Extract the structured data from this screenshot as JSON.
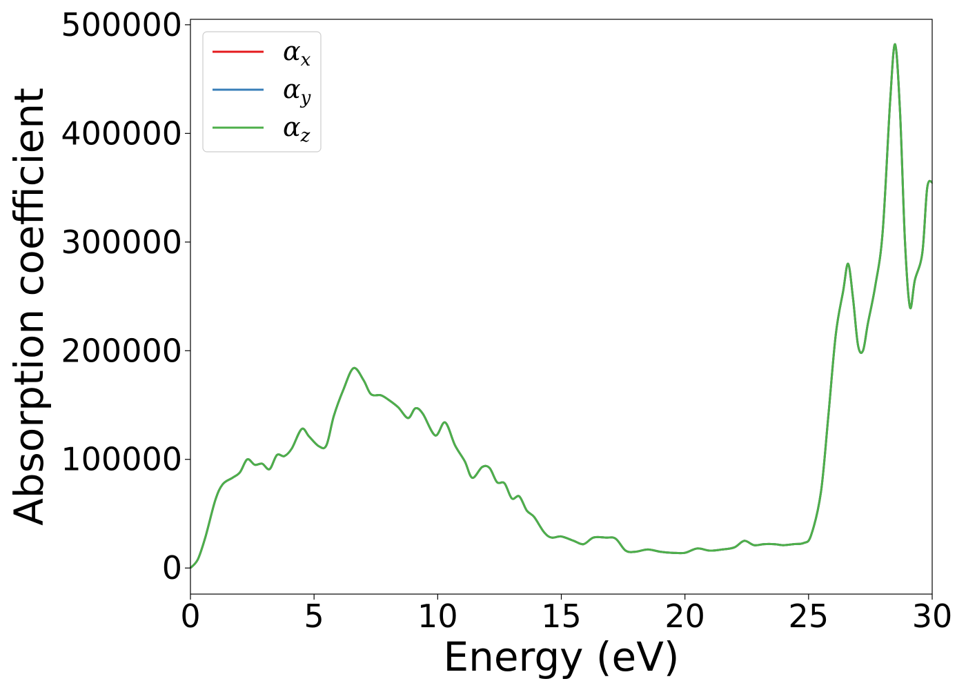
{
  "chart_data": {
    "type": "line",
    "xlabel": "Energy (eV)",
    "ylabel": "Absorption coefficient",
    "xlim": [
      0,
      30
    ],
    "ylim": [
      -24000,
      505000
    ],
    "xticks": [
      0,
      5,
      10,
      15,
      20,
      25,
      30
    ],
    "yticks": [
      0,
      100000,
      200000,
      300000,
      400000,
      500000
    ],
    "xtick_labels": [
      "0",
      "5",
      "10",
      "15",
      "20",
      "25",
      "30"
    ],
    "ytick_labels": [
      "0",
      "100000",
      "200000",
      "300000",
      "400000",
      "500000"
    ],
    "grid": false,
    "legend_position": "top-left",
    "colors": {
      "alpha_x": "#e41a1c",
      "alpha_y": "#377eb8",
      "alpha_z": "#4daf4a"
    },
    "x": [
      0,
      0.3,
      0.6,
      1.0,
      1.3,
      1.7,
      2.0,
      2.3,
      2.6,
      2.9,
      3.2,
      3.5,
      3.8,
      4.1,
      4.5,
      4.8,
      5.2,
      5.5,
      5.8,
      6.2,
      6.6,
      7.0,
      7.3,
      7.7,
      8.0,
      8.4,
      8.8,
      9.1,
      9.4,
      9.9,
      10.3,
      10.7,
      11.1,
      11.4,
      11.8,
      12.1,
      12.4,
      12.7,
      13.0,
      13.3,
      13.6,
      13.9,
      14.3,
      14.6,
      15.0,
      15.5,
      15.9,
      16.3,
      16.8,
      17.2,
      17.6,
      18.0,
      18.5,
      19.0,
      19.5,
      20.0,
      20.5,
      21.0,
      21.5,
      22.0,
      22.4,
      22.8,
      23.2,
      23.6,
      24.0,
      24.4,
      24.8,
      25.1,
      25.5,
      25.8,
      26.1,
      26.4,
      26.6,
      26.8,
      27.0,
      27.2,
      27.4,
      27.7,
      28.0,
      28.3,
      28.5,
      28.7,
      28.9,
      29.1,
      29.3,
      29.6,
      29.8,
      30.0
    ],
    "series": [
      {
        "name": "αx",
        "label_main": "α",
        "label_sub": "x",
        "values": [
          0,
          8000,
          28000,
          62000,
          77000,
          83000,
          88000,
          100000,
          95000,
          96000,
          91000,
          104000,
          103000,
          110000,
          128000,
          121000,
          112000,
          113000,
          140000,
          165000,
          184000,
          173000,
          160000,
          159000,
          155000,
          148000,
          138000,
          147000,
          142000,
          122000,
          134000,
          113000,
          98000,
          83000,
          93000,
          92000,
          79000,
          78000,
          64000,
          66000,
          53000,
          47000,
          33000,
          28000,
          29000,
          25000,
          22000,
          28000,
          28000,
          27000,
          16000,
          15000,
          17000,
          15000,
          14000,
          14000,
          18000,
          16000,
          17000,
          19000,
          25000,
          21000,
          22000,
          22000,
          21000,
          22000,
          23000,
          30000,
          70000,
          140000,
          215000,
          255000,
          280000,
          248000,
          205000,
          200000,
          225000,
          260000,
          310000,
          430000,
          482000,
          420000,
          300000,
          240000,
          265000,
          290000,
          350000,
          355000
        ]
      },
      {
        "name": "αy",
        "label_main": "α",
        "label_sub": "y",
        "values": [
          0,
          8000,
          28000,
          62000,
          77000,
          83000,
          88000,
          100000,
          95000,
          96000,
          91000,
          104000,
          103000,
          110000,
          128000,
          121000,
          112000,
          113000,
          140000,
          165000,
          184000,
          173000,
          160000,
          159000,
          155000,
          148000,
          138000,
          147000,
          142000,
          122000,
          134000,
          113000,
          98000,
          83000,
          93000,
          92000,
          79000,
          78000,
          64000,
          66000,
          53000,
          47000,
          33000,
          28000,
          29000,
          25000,
          22000,
          28000,
          28000,
          27000,
          16000,
          15000,
          17000,
          15000,
          14000,
          14000,
          18000,
          16000,
          17000,
          19000,
          25000,
          21000,
          22000,
          22000,
          21000,
          22000,
          23000,
          30000,
          70000,
          140000,
          215000,
          255000,
          280000,
          248000,
          205000,
          200000,
          225000,
          260000,
          310000,
          430000,
          482000,
          420000,
          300000,
          240000,
          265000,
          290000,
          350000,
          355000
        ]
      },
      {
        "name": "αz",
        "label_main": "α",
        "label_sub": "z",
        "values": [
          0,
          8000,
          28000,
          62000,
          77000,
          83000,
          88000,
          100000,
          95000,
          96000,
          91000,
          104000,
          103000,
          110000,
          128000,
          121000,
          112000,
          113000,
          140000,
          165000,
          184000,
          173000,
          160000,
          159000,
          155000,
          148000,
          138000,
          147000,
          142000,
          122000,
          134000,
          113000,
          98000,
          83000,
          93000,
          92000,
          79000,
          78000,
          64000,
          66000,
          53000,
          47000,
          33000,
          28000,
          29000,
          25000,
          22000,
          28000,
          28000,
          27000,
          16000,
          15000,
          17000,
          15000,
          14000,
          14000,
          18000,
          16000,
          17000,
          19000,
          25000,
          21000,
          22000,
          22000,
          21000,
          22000,
          23000,
          30000,
          70000,
          140000,
          215000,
          255000,
          280000,
          248000,
          205000,
          200000,
          225000,
          260000,
          310000,
          430000,
          482000,
          420000,
          300000,
          240000,
          265000,
          290000,
          350000,
          355000
        ]
      }
    ]
  }
}
